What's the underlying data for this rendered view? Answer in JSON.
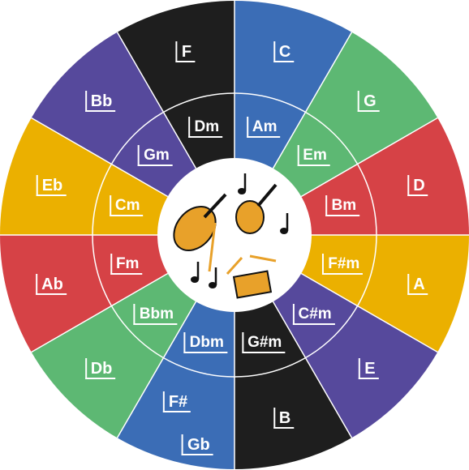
{
  "segments": [
    {
      "major": [
        "C"
      ],
      "minor": "Am",
      "color": "#3b6db6"
    },
    {
      "major": [
        "G"
      ],
      "minor": "Em",
      "color": "#5db873"
    },
    {
      "major": [
        "D"
      ],
      "minor": "Bm",
      "color": "#d64246"
    },
    {
      "major": [
        "A"
      ],
      "minor": "F#m",
      "color": "#ebb000"
    },
    {
      "major": [
        "E"
      ],
      "minor": "C#m",
      "color": "#56499c"
    },
    {
      "major": [
        "B"
      ],
      "minor": "G#m",
      "color": "#1e1e1e"
    },
    {
      "major": [
        "F#",
        "Gb"
      ],
      "minor": "Dbm",
      "color": "#3b6db6"
    },
    {
      "major": [
        "Db"
      ],
      "minor": "Bbm",
      "color": "#5db873"
    },
    {
      "major": [
        "Ab"
      ],
      "minor": "Fm",
      "color": "#d64246"
    },
    {
      "major": [
        "Eb"
      ],
      "minor": "Cm",
      "color": "#ebb000"
    },
    {
      "major": [
        "Bb"
      ],
      "minor": "Gm",
      "color": "#56499c"
    },
    {
      "major": [
        "F"
      ],
      "minor": "Dm",
      "color": "#1e1e1e"
    }
  ]
}
